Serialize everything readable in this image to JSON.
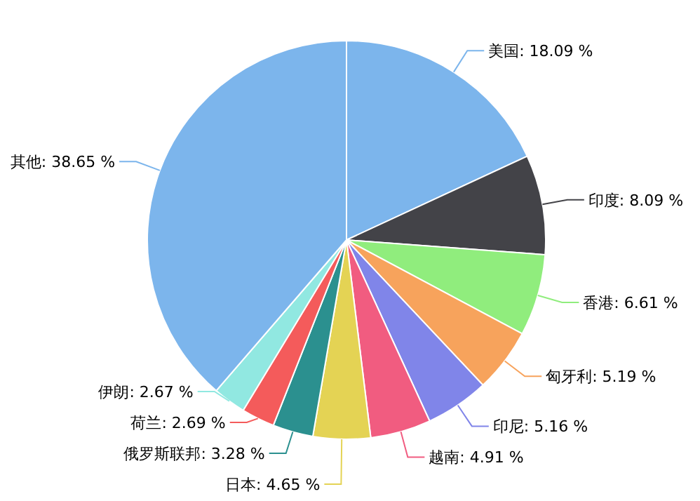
{
  "chart_data": {
    "type": "pie",
    "data_labels": true,
    "categories": [
      "美国",
      "印度",
      "香港",
      "匈牙利",
      "印尼",
      "越南",
      "日本",
      "俄罗斯联邦",
      "荷兰",
      "伊朗",
      "其他"
    ],
    "values": [
      18.09,
      8.09,
      6.61,
      5.19,
      5.16,
      4.91,
      4.65,
      3.28,
      2.69,
      2.67,
      38.65
    ],
    "value_labels": [
      "18.09 %",
      "8.09 %",
      "6.61 %",
      "5.19 %",
      "5.16 %",
      "4.91 %",
      "4.65 %",
      "3.28 %",
      "2.69 %",
      "2.67 %",
      "38.65 %"
    ],
    "colors": [
      "#7cb5ec",
      "#434348",
      "#90ed7d",
      "#f7a35c",
      "#8085e9",
      "#f15c80",
      "#e4d354",
      "#2b908f",
      "#f45b5b",
      "#91e8e1",
      "#7cb5ec"
    ]
  }
}
